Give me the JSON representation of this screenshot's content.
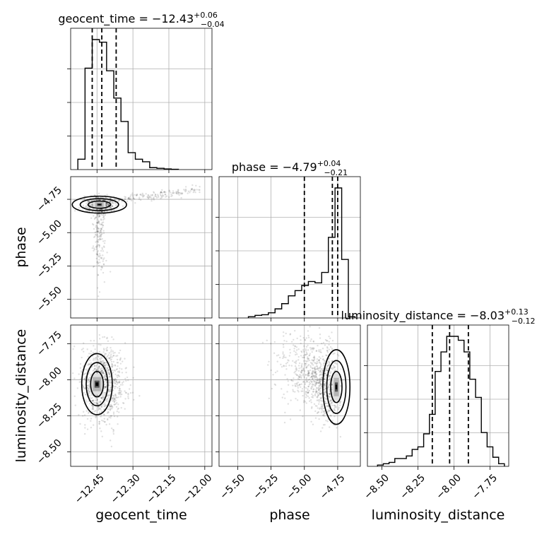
{
  "chart_data": {
    "type": "corner",
    "parameters": [
      {
        "name": "geocent_time",
        "label": "geocent_time",
        "title": "geocent_time = −12.43",
        "title_sup": "+0.06",
        "title_sub": "−0.04",
        "range": [
          -12.56,
          -11.97
        ],
        "ticks": [
          -12.45,
          -12.3,
          -12.15,
          -12.0
        ],
        "tick_labels": [
          "−12.45",
          "−12.30",
          "−12.15",
          "−12.00"
        ],
        "quantiles": [
          -12.47,
          -12.43,
          -12.37
        ],
        "histogram": {
          "bin_edges": [
            -12.53,
            -12.5,
            -12.47,
            -12.44,
            -12.41,
            -12.38,
            -12.35,
            -12.32,
            -12.29,
            -12.26,
            -12.23,
            -12.2,
            -12.17,
            -12.14,
            -12.11
          ],
          "counts": [
            0.08,
            0.78,
            1.0,
            0.98,
            0.76,
            0.55,
            0.37,
            0.13,
            0.08,
            0.06,
            0.015,
            0.01,
            0.005,
            0.002
          ]
        }
      },
      {
        "name": "phase",
        "label": "phase",
        "title": "phase = −4.79",
        "title_sup": "+0.04",
        "title_sub": "−0.21",
        "range": [
          -5.64,
          -4.58
        ],
        "ticks": [
          -5.5,
          -5.25,
          -5.0,
          -4.75
        ],
        "tick_labels": [
          "−5.50",
          "−5.25",
          "−5.00",
          "−4.75"
        ],
        "quantiles": [
          -5.0,
          -4.79,
          -4.75
        ],
        "histogram": {
          "bin_edges": [
            -5.42,
            -5.37,
            -5.32,
            -5.27,
            -5.22,
            -5.17,
            -5.12,
            -5.07,
            -5.02,
            -4.97,
            -4.92,
            -4.87,
            -4.82,
            -4.77,
            -4.72,
            -4.67,
            -4.62
          ],
          "counts": [
            0.01,
            0.02,
            0.025,
            0.04,
            0.07,
            0.11,
            0.17,
            0.21,
            0.25,
            0.28,
            0.27,
            0.35,
            0.62,
            1.0,
            0.45,
            0.01
          ]
        }
      },
      {
        "name": "luminosity_distance",
        "label": "luminosity_distance",
        "title": "luminosity_distance = −8.03",
        "title_sup": "+0.13",
        "title_sub": "−0.12",
        "range": [
          -8.6,
          -7.62
        ],
        "ticks": [
          -8.5,
          -8.25,
          -8.0,
          -7.75
        ],
        "tick_labels": [
          "−8.50",
          "−8.25",
          "−8.00",
          "−7.75"
        ],
        "quantiles": [
          -8.15,
          -8.03,
          -7.9
        ],
        "histogram": {
          "bin_edges": [
            -8.53,
            -8.49,
            -8.45,
            -8.41,
            -8.37,
            -8.33,
            -8.29,
            -8.25,
            -8.21,
            -8.17,
            -8.13,
            -8.09,
            -8.05,
            -8.01,
            -7.97,
            -7.93,
            -7.89,
            -7.85,
            -7.81,
            -7.77,
            -7.73,
            -7.69,
            -7.65
          ],
          "counts": [
            0.01,
            0.02,
            0.03,
            0.06,
            0.06,
            0.08,
            0.13,
            0.15,
            0.25,
            0.4,
            0.73,
            0.88,
            1.0,
            1.0,
            0.97,
            0.88,
            0.67,
            0.53,
            0.26,
            0.15,
            0.07,
            0.02
          ]
        }
      }
    ],
    "pairs": [
      {
        "x": "geocent_time",
        "y": "phase",
        "peak": [
          -12.44,
          -4.79
        ]
      },
      {
        "x": "geocent_time",
        "y": "luminosity_distance",
        "peak": [
          -12.45,
          -8.03
        ]
      },
      {
        "x": "phase",
        "y": "luminosity_distance",
        "peak": [
          -4.76,
          -8.05
        ]
      }
    ]
  }
}
